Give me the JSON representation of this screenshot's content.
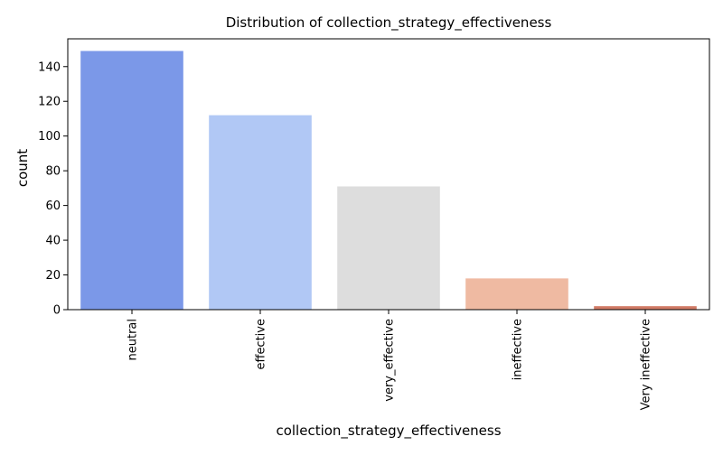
{
  "chart_data": {
    "type": "bar",
    "title": "Distribution of collection_strategy_effectiveness",
    "xlabel": "collection_strategy_effectiveness",
    "ylabel": "count",
    "categories": [
      "neutral",
      "effective",
      "very_effective",
      "ineffective",
      "Very ineffective"
    ],
    "values": [
      149,
      112,
      71,
      18,
      2
    ],
    "colors": [
      "#7b98e8",
      "#b1c8f5",
      "#dddddd",
      "#efbaa2",
      "#d17b66"
    ],
    "ylim": [
      0,
      156
    ],
    "yticks": [
      0,
      20,
      40,
      60,
      80,
      100,
      120,
      140
    ],
    "grid": false,
    "legend": "none"
  }
}
